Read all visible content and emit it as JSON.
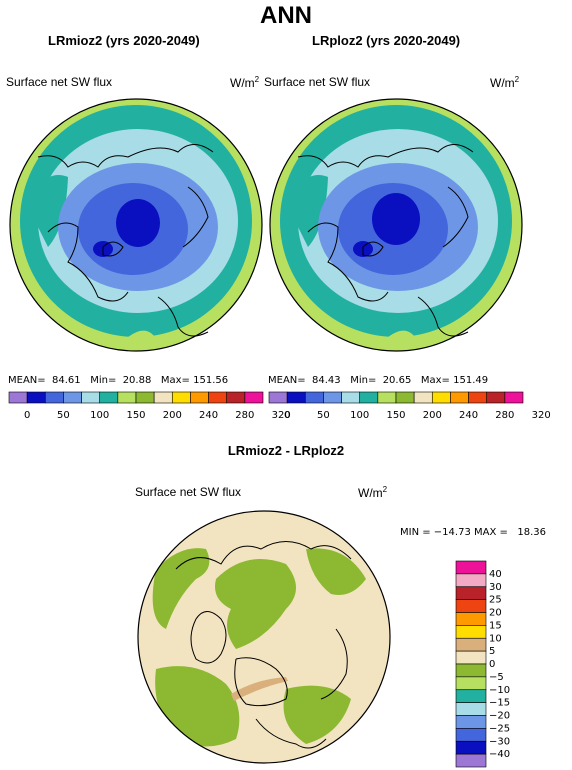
{
  "title": "ANN",
  "colors": {
    "l320": "#ee1199",
    "l280": "#b82228",
    "l240": "#ee4411",
    "l200": "#ff9900",
    "l150a": "#ffdd00",
    "l150": "#f2e4c0",
    "l100a": "#8cb832",
    "l100": "#b8e060",
    "l50a": "#22b0a0",
    "l50": "#a8dce6",
    "l0a": "#6e96e6",
    "l0": "#4466dd",
    "lneg": "#0a10c0",
    "lmin": "#9d77d6"
  },
  "maps": [
    {
      "title": "LRmioz2 (yrs 2020-2049)",
      "variable": "Surface net SW flux",
      "units": "W/m",
      "units_sup": "2",
      "stats": {
        "mean_label": "MEAN=",
        "mean": "84.61",
        "min_label": "Min=",
        "min": "20.88",
        "max_label": "Max=",
        "max": "151.56"
      }
    },
    {
      "title": "LRploz2 (yrs 2020-2049)",
      "variable": "Surface net SW flux",
      "units": "W/m",
      "units_sup": "2",
      "stats": {
        "mean_label": "MEAN=",
        "mean": "84.43",
        "min_label": "Min=",
        "min": "20.65",
        "max_label": "Max=",
        "max": "151.49"
      }
    }
  ],
  "colorbar": {
    "labels": [
      "0",
      "50",
      "100",
      "150",
      "200",
      "240",
      "280",
      "320"
    ],
    "colors": [
      "#9d77d6",
      "#0a10c0",
      "#4466dd",
      "#6e96e6",
      "#a8dce6",
      "#22b0a0",
      "#b8e060",
      "#8cb832",
      "#f2e4c0",
      "#ffdd00",
      "#ff9900",
      "#ee4411",
      "#b82228",
      "#ee1199"
    ]
  },
  "diff": {
    "title": "LRmioz2 - LRploz2",
    "variable": "Surface net SW flux",
    "units": "W/m",
    "units_sup": "2",
    "stats": "MIN = −14.73 MAX =   18.36",
    "legend_labels": [
      "40",
      "30",
      "25",
      "20",
      "15",
      "10",
      "5",
      "0",
      "−5",
      "−10",
      "−15",
      "−20",
      "−25",
      "−30",
      "−40"
    ],
    "legend_colors": [
      "#ee1199",
      "#f4aac4",
      "#b82228",
      "#ee4411",
      "#ff9900",
      "#ffdd00",
      "#d9b07c",
      "#f2e4c0",
      "#8cb832",
      "#b8e060",
      "#22b0a0",
      "#a8dce6",
      "#6e96e6",
      "#4466dd",
      "#0a10c0",
      "#9d77d6"
    ]
  }
}
